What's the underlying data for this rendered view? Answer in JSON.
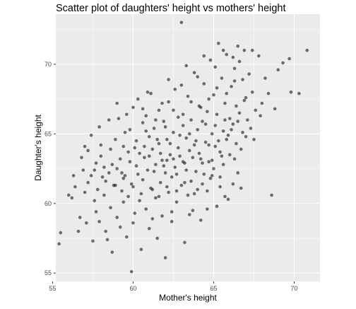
{
  "chart_data": {
    "type": "scatter",
    "title": "Scatter plot of daughters' height vs mothers' height",
    "xlabel": "Mother's height",
    "ylabel": "Daughter's height",
    "xlim": [
      55.2,
      71.6
    ],
    "ylim": [
      54.4,
      73.6
    ],
    "x_ticks": [
      55,
      60,
      65,
      70
    ],
    "y_ticks": [
      55,
      60,
      65,
      70
    ],
    "grid": true,
    "legend": "none",
    "point_color": "#000000",
    "point_opacity": 0.55,
    "panel_background": "#ebebeb",
    "grid_color": "#ffffff",
    "points": [
      [
        55.4,
        57.1
      ],
      [
        55.5,
        57.9
      ],
      [
        56.0,
        60.6
      ],
      [
        56.2,
        60.4
      ],
      [
        56.4,
        61.2
      ],
      [
        56.6,
        58.0
      ],
      [
        56.7,
        59.0
      ],
      [
        56.8,
        63.3
      ],
      [
        56.9,
        62.4
      ],
      [
        57.0,
        60.8
      ],
      [
        57.1,
        58.6
      ],
      [
        57.2,
        63.8
      ],
      [
        57.2,
        61.5
      ],
      [
        57.4,
        62.0
      ],
      [
        57.4,
        64.9
      ],
      [
        57.5,
        57.3
      ],
      [
        57.6,
        60.2
      ],
      [
        57.7,
        62.9
      ],
      [
        57.7,
        59.4
      ],
      [
        57.8,
        61.0
      ],
      [
        57.9,
        58.7
      ],
      [
        58.0,
        63.4
      ],
      [
        58.0,
        64.2
      ],
      [
        58.2,
        62.6
      ],
      [
        58.2,
        60.6
      ],
      [
        58.3,
        61.6
      ],
      [
        58.3,
        58.0
      ],
      [
        58.4,
        57.4
      ],
      [
        58.5,
        62.2
      ],
      [
        58.6,
        59.7
      ],
      [
        58.6,
        63.9
      ],
      [
        58.7,
        56.5
      ],
      [
        58.8,
        61.3
      ],
      [
        58.9,
        64.6
      ],
      [
        59.0,
        62.5
      ],
      [
        59.0,
        59.0
      ],
      [
        59.1,
        66.1
      ],
      [
        59.2,
        58.3
      ],
      [
        59.2,
        63.2
      ],
      [
        59.3,
        60.9
      ],
      [
        59.4,
        61.8
      ],
      [
        59.4,
        64.1
      ],
      [
        59.5,
        62.0
      ],
      [
        59.6,
        66.4
      ],
      [
        59.6,
        57.6
      ],
      [
        59.7,
        60.5
      ],
      [
        59.8,
        65.3
      ],
      [
        59.8,
        63.0
      ],
      [
        59.9,
        55.1
      ],
      [
        60.0,
        61.2
      ],
      [
        60.0,
        66.9
      ],
      [
        60.1,
        59.3
      ],
      [
        60.2,
        62.7
      ],
      [
        60.2,
        64.5
      ],
      [
        60.3,
        67.5
      ],
      [
        60.4,
        60.2
      ],
      [
        60.4,
        63.6
      ],
      [
        60.5,
        56.7
      ],
      [
        60.6,
        65.8
      ],
      [
        60.6,
        61.7
      ],
      [
        60.7,
        63.3
      ],
      [
        60.8,
        59.6
      ],
      [
        60.8,
        66.3
      ],
      [
        60.9,
        62.4
      ],
      [
        61.0,
        64.8
      ],
      [
        61.0,
        58.2
      ],
      [
        61.1,
        67.9
      ],
      [
        61.2,
        61.0
      ],
      [
        61.2,
        63.9
      ],
      [
        61.3,
        65.4
      ],
      [
        61.4,
        60.4
      ],
      [
        61.4,
        62.8
      ],
      [
        61.5,
        57.5
      ],
      [
        61.6,
        66.7
      ],
      [
        61.6,
        64.3
      ],
      [
        61.7,
        61.5
      ],
      [
        61.8,
        63.1
      ],
      [
        61.8,
        59.1
      ],
      [
        61.9,
        65.9
      ],
      [
        62.0,
        62.2
      ],
      [
        62.0,
        56.1
      ],
      [
        62.1,
        64.6
      ],
      [
        62.2,
        60.8
      ],
      [
        62.2,
        67.3
      ],
      [
        62.3,
        63.5
      ],
      [
        62.4,
        61.9
      ],
      [
        62.4,
        58.7
      ],
      [
        62.5,
        65.1
      ],
      [
        62.6,
        62.6
      ],
      [
        62.6,
        68.2
      ],
      [
        62.7,
        60.1
      ],
      [
        62.8,
        64.0
      ],
      [
        62.8,
        66.2
      ],
      [
        62.9,
        63.4
      ],
      [
        63.0,
        61.3
      ],
      [
        63.0,
        73.0
      ],
      [
        63.1,
        65.6
      ],
      [
        63.2,
        62.9
      ],
      [
        63.2,
        57.2
      ],
      [
        63.3,
        64.7
      ],
      [
        63.4,
        60.6
      ],
      [
        63.4,
        67.7
      ],
      [
        63.5,
        63.8
      ],
      [
        63.6,
        61.6
      ],
      [
        63.6,
        66.0
      ],
      [
        63.7,
        59.5
      ],
      [
        63.8,
        64.2
      ],
      [
        63.8,
        69.4
      ],
      [
        63.9,
        62.3
      ],
      [
        64.0,
        65.3
      ],
      [
        64.0,
        61.0
      ],
      [
        64.1,
        67.0
      ],
      [
        64.2,
        63.2
      ],
      [
        64.2,
        58.8
      ],
      [
        64.3,
        65.9
      ],
      [
        64.4,
        62.1
      ],
      [
        64.4,
        68.6
      ],
      [
        64.5,
        64.4
      ],
      [
        64.6,
        60.9
      ],
      [
        64.6,
        66.6
      ],
      [
        64.7,
        63.0
      ],
      [
        64.8,
        70.3
      ],
      [
        64.8,
        61.8
      ],
      [
        64.9,
        65.0
      ],
      [
        65.0,
        67.8
      ],
      [
        65.0,
        62.5
      ],
      [
        65.1,
        64.1
      ],
      [
        65.2,
        59.8
      ],
      [
        65.2,
        66.4
      ],
      [
        65.3,
        71.5
      ],
      [
        65.4,
        63.7
      ],
      [
        65.4,
        61.2
      ],
      [
        65.5,
        69.0
      ],
      [
        65.6,
        65.2
      ],
      [
        65.6,
        62.8
      ],
      [
        65.7,
        67.2
      ],
      [
        65.8,
        64.6
      ],
      [
        65.8,
        70.7
      ],
      [
        65.9,
        60.3
      ],
      [
        66.0,
        66.1
      ],
      [
        66.0,
        63.5
      ],
      [
        66.1,
        68.4
      ],
      [
        66.2,
        65.7
      ],
      [
        66.2,
        61.4
      ],
      [
        66.3,
        69.7
      ],
      [
        66.4,
        64.3
      ],
      [
        66.4,
        67.0
      ],
      [
        66.5,
        62.2
      ],
      [
        66.6,
        70.2
      ],
      [
        66.6,
        66.5
      ],
      [
        66.7,
        63.9
      ],
      [
        66.8,
        68.9
      ],
      [
        66.8,
        65.1
      ],
      [
        66.9,
        71.0
      ],
      [
        67.0,
        64.8
      ],
      [
        67.0,
        67.6
      ],
      [
        67.2,
        69.3
      ],
      [
        67.3,
        65.4
      ],
      [
        67.4,
        68.0
      ],
      [
        67.6,
        66.7
      ],
      [
        67.8,
        70.6
      ],
      [
        68.0,
        67.2
      ],
      [
        68.2,
        69.0
      ],
      [
        68.4,
        67.9
      ],
      [
        68.6,
        60.6
      ],
      [
        68.8,
        66.8
      ],
      [
        69.0,
        69.6
      ],
      [
        69.3,
        70.1
      ],
      [
        69.7,
        70.4
      ],
      [
        69.8,
        68.0
      ],
      [
        70.3,
        67.9
      ],
      [
        70.8,
        71.0
      ],
      [
        57.6,
        62.4
      ],
      [
        58.1,
        61.9
      ],
      [
        58.7,
        62.8
      ],
      [
        59.3,
        62.2
      ],
      [
        59.7,
        63.7
      ],
      [
        60.1,
        64.0
      ],
      [
        60.3,
        62.1
      ],
      [
        60.7,
        64.1
      ],
      [
        61.0,
        63.4
      ],
      [
        61.3,
        62.3
      ],
      [
        61.5,
        64.6
      ],
      [
        61.7,
        63.6
      ],
      [
        61.9,
        62.7
      ],
      [
        62.1,
        63.1
      ],
      [
        62.3,
        64.3
      ],
      [
        62.5,
        63.2
      ],
      [
        62.7,
        62.1
      ],
      [
        62.9,
        64.9
      ],
      [
        63.1,
        63.0
      ],
      [
        63.3,
        62.4
      ],
      [
        63.5,
        65.0
      ],
      [
        63.7,
        63.3
      ],
      [
        63.9,
        64.5
      ],
      [
        64.1,
        63.6
      ],
      [
        64.3,
        62.9
      ],
      [
        64.5,
        65.7
      ],
      [
        64.7,
        64.2
      ],
      [
        64.9,
        63.1
      ],
      [
        65.1,
        65.6
      ],
      [
        65.3,
        64.5
      ],
      [
        65.5,
        63.4
      ],
      [
        65.7,
        66.0
      ],
      [
        65.9,
        64.9
      ],
      [
        66.1,
        65.3
      ],
      [
        66.3,
        63.2
      ],
      [
        66.5,
        65.9
      ],
      [
        59.4,
        60.1
      ],
      [
        59.9,
        61.4
      ],
      [
        60.5,
        60.7
      ],
      [
        61.1,
        61.1
      ],
      [
        61.6,
        60.5
      ],
      [
        62.1,
        61.2
      ],
      [
        62.7,
        60.9
      ],
      [
        63.2,
        61.5
      ],
      [
        63.8,
        60.7
      ],
      [
        64.3,
        61.4
      ],
      [
        64.9,
        62.0
      ],
      [
        65.4,
        61.9
      ],
      [
        60.8,
        65.2
      ],
      [
        61.4,
        66.0
      ],
      [
        62.0,
        65.5
      ],
      [
        62.5,
        66.7
      ],
      [
        63.1,
        66.4
      ],
      [
        63.6,
        67.3
      ],
      [
        64.2,
        66.9
      ],
      [
        64.7,
        67.5
      ],
      [
        65.2,
        68.3
      ],
      [
        65.8,
        67.9
      ],
      [
        66.3,
        68.8
      ],
      [
        66.9,
        67.4
      ],
      [
        58.9,
        61.3
      ],
      [
        59.5,
        65.1
      ],
      [
        60.0,
        58.6
      ],
      [
        60.6,
        66.8
      ],
      [
        61.2,
        58.9
      ],
      [
        61.8,
        67.2
      ],
      [
        62.4,
        59.4
      ],
      [
        63.0,
        68.5
      ],
      [
        63.5,
        59.2
      ],
      [
        64.0,
        69.1
      ],
      [
        64.6,
        59.6
      ],
      [
        65.1,
        69.8
      ],
      [
        65.7,
        60.5
      ],
      [
        66.2,
        70.5
      ],
      [
        66.7,
        61.1
      ],
      [
        67.1,
        66.0
      ],
      [
        67.5,
        64.6
      ],
      [
        67.9,
        66.3
      ],
      [
        56.3,
        62.0
      ],
      [
        57.0,
        64.1
      ],
      [
        57.9,
        65.5
      ],
      [
        58.5,
        66.0
      ],
      [
        59.0,
        67.2
      ],
      [
        60.9,
        68.0
      ],
      [
        62.2,
        68.9
      ],
      [
        63.3,
        69.9
      ],
      [
        64.4,
        70.6
      ],
      [
        65.6,
        71.0
      ],
      [
        66.5,
        71.3
      ],
      [
        67.4,
        71.0
      ]
    ]
  }
}
